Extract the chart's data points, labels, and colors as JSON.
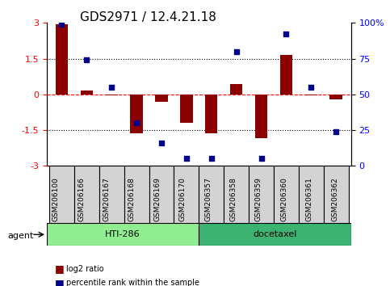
{
  "title": "GDS2971 / 12.4.21.18",
  "samples": [
    "GSM206100",
    "GSM206166",
    "GSM206167",
    "GSM206168",
    "GSM206169",
    "GSM206170",
    "GSM206357",
    "GSM206358",
    "GSM206359",
    "GSM206360",
    "GSM206361",
    "GSM206362"
  ],
  "log2_ratio": [
    2.95,
    0.15,
    -0.05,
    -1.65,
    -0.3,
    -1.2,
    -1.65,
    0.45,
    -1.85,
    1.65,
    -0.05,
    -0.2
  ],
  "percentile_rank": [
    99,
    74,
    55,
    30,
    16,
    5,
    5,
    80,
    5,
    92,
    55,
    24
  ],
  "groups": [
    {
      "label": "HTI-286",
      "start": 0,
      "end": 6,
      "color": "#90EE90"
    },
    {
      "label": "docetaxel",
      "start": 6,
      "end": 12,
      "color": "#3CB371"
    }
  ],
  "ylim": [
    -3,
    3
  ],
  "right_ylim": [
    0,
    100
  ],
  "right_yticks": [
    0,
    25,
    50,
    75,
    100
  ],
  "right_yticklabels": [
    "0",
    "25",
    "50",
    "75",
    "100%"
  ],
  "left_yticks": [
    -3,
    -1.5,
    0,
    1.5,
    3
  ],
  "hlines": [
    0,
    1.5,
    -1.5
  ],
  "bar_color": "#8B0000",
  "dot_color": "#00008B",
  "bar_width": 0.5,
  "legend_items": [
    {
      "label": "log2 ratio",
      "color": "#8B0000"
    },
    {
      "label": "percentile rank within the sample",
      "color": "#00008B"
    }
  ],
  "agent_label": "agent",
  "figsize": [
    4.83,
    3.54
  ],
  "dpi": 100
}
